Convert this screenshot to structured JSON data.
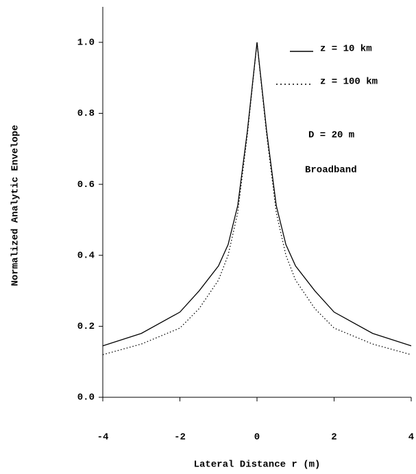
{
  "chart_data": {
    "type": "line",
    "x_label": "Lateral Distance r (m)",
    "y_label": "Normalized Analytic Envelope",
    "x": [
      -4,
      -3,
      -2,
      -1.5,
      -1,
      -0.75,
      -0.5,
      -0.25,
      0,
      0.25,
      0.5,
      0.75,
      1,
      1.5,
      2,
      3,
      4
    ],
    "series": [
      {
        "name": "z = 10 km",
        "color": "#000000",
        "style": "solid",
        "values": [
          0.145,
          0.18,
          0.24,
          0.3,
          0.37,
          0.43,
          0.54,
          0.75,
          1.0,
          0.75,
          0.54,
          0.43,
          0.37,
          0.3,
          0.24,
          0.18,
          0.145
        ]
      },
      {
        "name": "z = 100 km",
        "color": "#000000",
        "style": "dotted",
        "values": [
          0.12,
          0.15,
          0.195,
          0.25,
          0.33,
          0.4,
          0.52,
          0.74,
          1.0,
          0.74,
          0.52,
          0.4,
          0.33,
          0.25,
          0.195,
          0.15,
          0.12
        ]
      }
    ],
    "annotations": [
      "D = 20 m",
      "Broadband"
    ],
    "xlim": [
      -4,
      4
    ],
    "xticks": [
      -4,
      -2,
      0,
      2,
      4
    ],
    "ylim": [
      0,
      1.1
    ],
    "yticks": [
      {
        "value": 0,
        "label": "0.0"
      },
      0.2,
      0.4,
      0.6,
      0.8,
      {
        "value": 1,
        "label": "1.0"
      }
    ],
    "grid": false
  }
}
